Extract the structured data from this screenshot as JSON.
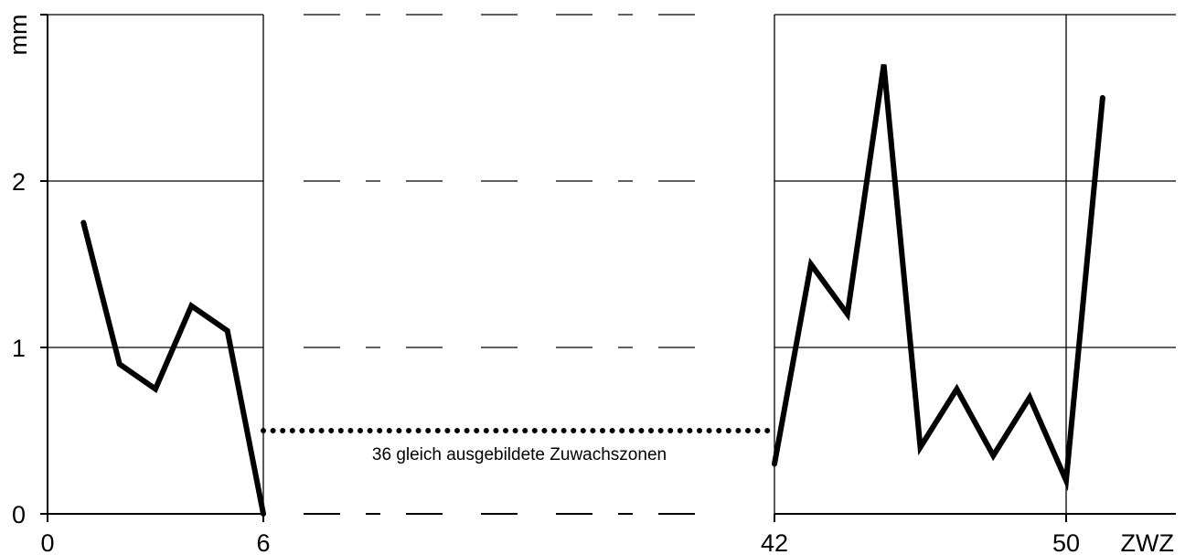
{
  "chart_data": {
    "type": "line",
    "title": "",
    "ylabel": "mm",
    "xlabel": "ZWZ",
    "ylim": [
      0,
      3
    ],
    "y_ticks": [
      "0",
      "1",
      "2"
    ],
    "x_ticks": [
      "0",
      "6",
      "42",
      "50"
    ],
    "grid": true,
    "axis_break": {
      "from": 6,
      "to": 42
    },
    "series": [
      {
        "segment": "left",
        "x": [
          1,
          2,
          3,
          4,
          5,
          6
        ],
        "y": [
          1.75,
          0.9,
          0.75,
          1.25,
          1.1,
          0.0
        ]
      },
      {
        "segment": "right",
        "x": [
          42,
          43,
          44,
          45,
          46,
          47,
          48,
          49,
          50,
          51
        ],
        "y": [
          0.3,
          1.5,
          1.2,
          2.7,
          0.4,
          0.75,
          0.35,
          0.7,
          0.2,
          2.5
        ]
      }
    ],
    "bridge": {
      "x_from": 6,
      "x_to": 42,
      "y": 0.5
    },
    "annotation": "36 gleich ausgebildete Zuwachszonen"
  }
}
